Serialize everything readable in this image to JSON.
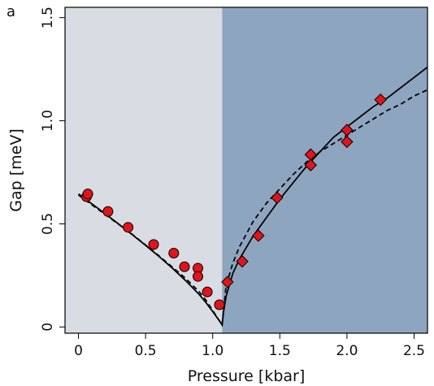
{
  "panel_label": "a",
  "chart_data": {
    "type": "scatter",
    "title": "",
    "xlabel": "Pressure [kbar]",
    "ylabel": "Gap [meV]",
    "xlim": [
      -0.1,
      2.6
    ],
    "ylim": [
      -0.03,
      1.55
    ],
    "x_ticks": [
      0,
      0.5,
      1.0,
      1.5,
      2.0,
      2.5
    ],
    "x_tick_labels": [
      "0",
      "0.5",
      "1.0",
      "1.5",
      "2.0",
      "2.5"
    ],
    "y_ticks": [
      0,
      0.5,
      1.0,
      1.5
    ],
    "y_tick_labels": [
      "0",
      "0.5",
      "1.0",
      "1.5"
    ],
    "grid": false,
    "legend": "none",
    "regions": [
      {
        "x_from": -0.1,
        "x_to": 1.07,
        "color": "#d9dce2"
      },
      {
        "x_from": 1.07,
        "x_to": 2.6,
        "color": "#8ea5c0"
      }
    ],
    "series": [
      {
        "marker": "circle",
        "color": "#e0141b",
        "x": [
          0.06,
          0.07,
          0.22,
          0.37,
          0.56,
          0.71,
          0.79,
          0.89,
          0.89,
          0.96,
          1.05
        ],
        "y": [
          0.632,
          0.645,
          0.56,
          0.483,
          0.4,
          0.358,
          0.292,
          0.285,
          0.245,
          0.17,
          0.108
        ]
      },
      {
        "marker": "diamond",
        "color": "#e0141b",
        "x": [
          1.11,
          1.22,
          1.34,
          1.48,
          1.73,
          1.73,
          2.0,
          2.0,
          2.25
        ],
        "y": [
          0.218,
          0.318,
          0.443,
          0.627,
          0.836,
          0.785,
          0.955,
          0.898,
          1.102
        ]
      },
      {
        "style": "solid",
        "color": "#000000",
        "x": [
          0.0,
          0.1,
          0.2,
          0.3,
          0.4,
          0.5,
          0.6,
          0.7,
          0.8,
          0.9,
          0.95,
          1.0,
          1.03,
          1.05,
          1.07,
          1.08,
          1.1,
          1.15,
          1.2,
          1.3,
          1.4,
          1.5,
          1.6,
          1.7,
          1.8,
          1.9,
          2.0,
          2.1,
          2.2,
          2.3,
          2.4,
          2.5,
          2.6
        ],
        "y": [
          0.645,
          0.597,
          0.549,
          0.499,
          0.448,
          0.396,
          0.342,
          0.285,
          0.224,
          0.157,
          0.118,
          0.075,
          0.048,
          0.03,
          0.01,
          0.07,
          0.15,
          0.26,
          0.33,
          0.44,
          0.53,
          0.62,
          0.7,
          0.78,
          0.85,
          0.92,
          0.97,
          1.02,
          1.07,
          1.11,
          1.16,
          1.21,
          1.26
        ]
      },
      {
        "style": "dashed",
        "color": "#000000",
        "x": [
          0.0,
          0.2,
          0.4,
          0.6,
          0.8,
          0.9,
          0.95,
          1.0,
          1.05,
          1.07,
          1.1,
          1.15,
          1.2,
          1.3,
          1.4,
          1.5,
          1.6,
          1.7,
          1.8,
          1.9,
          2.0,
          2.1,
          2.2,
          2.3,
          2.4,
          2.5,
          2.6
        ],
        "y": [
          0.64,
          0.545,
          0.45,
          0.345,
          0.235,
          0.17,
          0.13,
          0.08,
          0.03,
          0.01,
          0.2,
          0.31,
          0.39,
          0.51,
          0.6,
          0.67,
          0.74,
          0.8,
          0.85,
          0.89,
          0.93,
          0.97,
          1.01,
          1.05,
          1.08,
          1.12,
          1.15
        ]
      }
    ]
  }
}
